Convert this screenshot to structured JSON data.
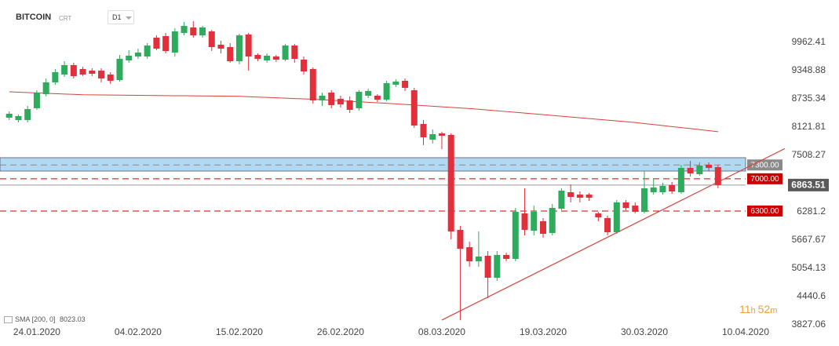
{
  "chart_data": {
    "type": "candlestick",
    "title": "BITCOIN",
    "subtitle": "CRT",
    "timeframe": "D1",
    "x": [
      "21.01.2020",
      "22.01.2020",
      "23.01.2020",
      "24.01.2020",
      "25.01.2020",
      "26.01.2020",
      "27.01.2020",
      "28.01.2020",
      "29.01.2020",
      "30.01.2020",
      "31.01.2020",
      "01.02.2020",
      "02.02.2020",
      "03.02.2020",
      "04.02.2020",
      "05.02.2020",
      "06.02.2020",
      "07.02.2020",
      "08.02.2020",
      "09.02.2020",
      "10.02.2020",
      "11.02.2020",
      "12.02.2020",
      "13.02.2020",
      "14.02.2020",
      "15.02.2020",
      "16.02.2020",
      "17.02.2020",
      "18.02.2020",
      "19.02.2020",
      "20.02.2020",
      "21.02.2020",
      "22.02.2020",
      "23.02.2020",
      "24.02.2020",
      "25.02.2020",
      "26.02.2020",
      "27.02.2020",
      "28.02.2020",
      "29.02.2020",
      "01.03.2020",
      "02.03.2020",
      "03.03.2020",
      "04.03.2020",
      "05.03.2020",
      "06.03.2020",
      "07.03.2020",
      "08.03.2020",
      "09.03.2020",
      "10.03.2020",
      "11.03.2020",
      "12.03.2020",
      "13.03.2020",
      "14.03.2020",
      "15.03.2020",
      "16.03.2020",
      "17.03.2020",
      "18.03.2020",
      "19.03.2020",
      "20.03.2020",
      "21.03.2020",
      "22.03.2020",
      "23.03.2020",
      "24.03.2020",
      "25.03.2020",
      "26.03.2020",
      "27.03.2020",
      "28.03.2020",
      "29.03.2020",
      "30.03.2020",
      "31.03.2020",
      "01.04.2020",
      "02.04.2020",
      "03.04.2020",
      "04.04.2020",
      "05.04.2020",
      "06.04.2020",
      "07.04.2020"
    ],
    "open": [
      8327,
      8276,
      8276,
      8532,
      8838,
      9094,
      9264,
      9469,
      9383,
      9349,
      9349,
      9264,
      9145,
      9571,
      9656,
      9656,
      10065,
      10099,
      9741,
      10167,
      10287,
      10116,
      10201,
      9912,
      9861,
      9554,
      10133,
      9690,
      9571,
      9656,
      9588,
      9895,
      9588,
      9383,
      8702,
      8872,
      8736,
      8702,
      8532,
      8804,
      8804,
      8719,
      9043,
      9128,
      8923,
      8191,
      7850,
      7986,
      7952,
      5890,
      5514,
      5209,
      5328,
      4851,
      5345,
      5260,
      6248,
      5873,
      6078,
      5822,
      6350,
      6708,
      6657,
      6657,
      6248,
      6146,
      5839,
      6487,
      6418,
      6282,
      6708,
      6708,
      6862,
      6708,
      7236,
      7100,
      7305,
      7254
    ],
    "high": [
      8463,
      8395,
      8583,
      8923,
      9179,
      9383,
      9554,
      9520,
      9435,
      9401,
      9401,
      9315,
      9690,
      9792,
      9826,
      9946,
      10116,
      10167,
      10270,
      10406,
      10423,
      10321,
      10235,
      9997,
      9946,
      10150,
      10167,
      9724,
      9724,
      9690,
      9929,
      9929,
      9656,
      9418,
      8872,
      8923,
      8804,
      8787,
      8923,
      8957,
      8838,
      9128,
      9162,
      9179,
      8975,
      8276,
      8071,
      8020,
      7986,
      5975,
      5635,
      5856,
      5430,
      5430,
      5396,
      6367,
      6793,
      6418,
      6146,
      6453,
      6793,
      6879,
      6725,
      6691,
      6282,
      6197,
      6538,
      6538,
      6487,
      7168,
      6998,
      6913,
      6930,
      7305,
      7390,
      7356,
      7356,
      7305
    ],
    "low": [
      8276,
      8225,
      8225,
      8497,
      8787,
      9043,
      9213,
      9179,
      9230,
      9230,
      9094,
      9060,
      9111,
      9520,
      9605,
      9605,
      9792,
      9724,
      9656,
      10116,
      10065,
      10065,
      9775,
      9724,
      9520,
      9486,
      9349,
      9554,
      9520,
      9537,
      9554,
      9520,
      9264,
      8634,
      8583,
      8532,
      8549,
      8429,
      8480,
      8753,
      8668,
      8685,
      8992,
      8906,
      8106,
      7731,
      7765,
      7645,
      5686,
      3931,
      5089,
      5089,
      4408,
      4783,
      5209,
      5209,
      5771,
      5771,
      5720,
      5771,
      6316,
      6487,
      6487,
      6521,
      6078,
      5771,
      5805,
      6316,
      6248,
      6248,
      6657,
      6657,
      6674,
      6674,
      7049,
      7066,
      7168,
      6793
    ],
    "close": [
      8412,
      8361,
      8514,
      8872,
      9094,
      9315,
      9469,
      9230,
      9264,
      9281,
      9179,
      9128,
      9605,
      9673,
      9741,
      9895,
      9826,
      9775,
      10201,
      10321,
      10116,
      10287,
      9861,
      9826,
      9554,
      10116,
      9656,
      9605,
      9673,
      9588,
      9895,
      9605,
      9332,
      8702,
      8804,
      8600,
      8617,
      8497,
      8889,
      8906,
      8719,
      9077,
      9111,
      8975,
      8157,
      7901,
      7969,
      7935,
      5856,
      5480,
      5209,
      5311,
      4851,
      5345,
      5260,
      6282,
      5890,
      6282,
      5805,
      6367,
      6742,
      6606,
      6589,
      6589,
      6163,
      5839,
      6487,
      6367,
      6282,
      6793,
      6810,
      6845,
      6725,
      7236,
      7117,
      7288,
      7236,
      6863.51
    ],
    "up_color": "#2eab5c",
    "down_color": "#e0303c",
    "ylim": [
      3368,
      10883
    ],
    "yticks": [
      9962.41,
      9348.88,
      8735.34,
      8121.81,
      7508.27,
      6281.2,
      5667.67,
      5054.13,
      4440.6,
      3827.06
    ],
    "xlim": [
      "20.01.2020",
      "10.04.2020"
    ],
    "xticks": [
      "24.01.2020",
      "04.02.2020",
      "15.02.2020",
      "26.02.2020",
      "08.03.2020",
      "19.03.2020",
      "30.03.2020",
      "10.04.2020"
    ],
    "sma": {
      "name": "SMA [200, 0]",
      "color": "#d9413c",
      "values": [
        8889,
        8881,
        8873,
        8865,
        8857,
        8849,
        8841,
        8833,
        8825,
        8823,
        8821,
        8819,
        8817,
        8815,
        8813,
        8811,
        8809,
        8807,
        8805,
        8803,
        8801,
        8799,
        8797,
        8795,
        8793,
        8791,
        8783,
        8775,
        8767,
        8759,
        8751,
        8743,
        8735,
        8727,
        8716,
        8705,
        8694,
        8683,
        8672,
        8661,
        8650,
        8639,
        8628,
        8615,
        8602,
        8589,
        8576,
        8563,
        8550,
        8537,
        8524,
        8511,
        8494,
        8477,
        8460,
        8443,
        8426,
        8409,
        8392,
        8375,
        8358,
        8341,
        8324,
        8307,
        8290,
        8273,
        8256,
        8239,
        8222,
        8200,
        8178,
        8156,
        8134,
        8112,
        8090,
        8068,
        8046,
        8023.03
      ]
    },
    "zone": {
      "from": 7168,
      "to": 7458,
      "color": "#a9d5f2"
    },
    "levels": [
      {
        "value": 7300,
        "label": "7300.00",
        "color": "#8a8a8a"
      },
      {
        "value": 7000,
        "label": "7000.00",
        "color": "#cc0000"
      },
      {
        "value": 6300,
        "label": "6300.00",
        "color": "#cc0000"
      }
    ],
    "trendline": {
      "color": "#d9413c",
      "points": [
        {
          "x": "08.03.2020",
          "y": 3931
        },
        {
          "x": "07.04.2020",
          "y": 6930
        }
      ]
    },
    "countdown": [
      "11",
      "h",
      "52",
      "m"
    ]
  }
}
